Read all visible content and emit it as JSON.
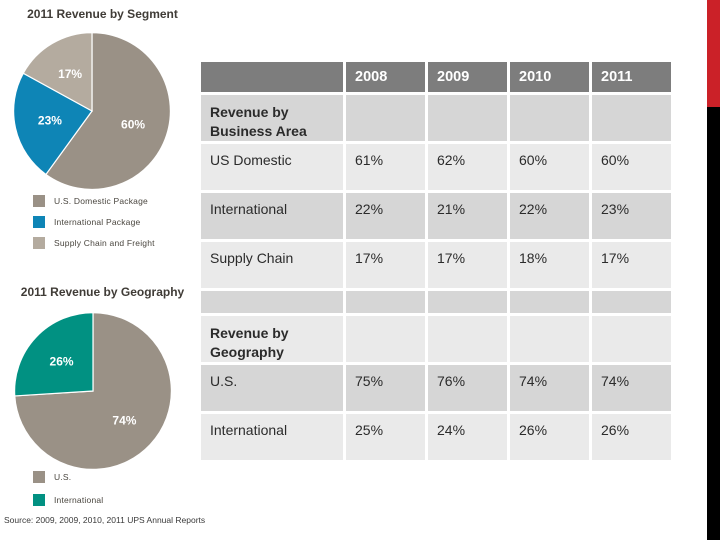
{
  "accent": {
    "red": "#cb2128",
    "black": "#000000"
  },
  "chart_data": [
    {
      "type": "pie",
      "title": "2011 Revenue by Segment",
      "labels": [
        "U.S. Domestic Package",
        "International Package",
        "Supply Chain and Freight"
      ],
      "values": [
        60,
        23,
        17
      ],
      "slice_labels": [
        "60%",
        "23%",
        "17%"
      ],
      "colors": [
        "#9a9186",
        "#0e85b6",
        "#b4ab9f"
      ],
      "start_angle_deg": 0,
      "direction": "clockwise",
      "legend_position": "below",
      "legend": [
        {
          "label": "U.S. Domestic Package",
          "color": "#9a9186"
        },
        {
          "label": "International Package",
          "color": "#0e85b6"
        },
        {
          "label": "Supply Chain and Freight",
          "color": "#b4ab9f"
        }
      ]
    },
    {
      "type": "pie",
      "title": "2011 Revenue by Geography",
      "labels": [
        "U.S.",
        "International"
      ],
      "values": [
        74,
        26
      ],
      "slice_labels": [
        "74%",
        "26%"
      ],
      "colors": [
        "#9a9186",
        "#019182"
      ],
      "start_angle_deg": 0,
      "direction": "clockwise",
      "legend_position": "below",
      "legend": [
        {
          "label": "U.S.",
          "color": "#9a9186"
        },
        {
          "label": "International",
          "color": "#019182"
        }
      ]
    }
  ],
  "table": {
    "header": [
      "",
      "2008",
      "2009",
      "2010",
      "2011"
    ],
    "rows": [
      {
        "type": "group",
        "label": "Revenue by Business Area",
        "values": [
          "",
          "",
          "",
          ""
        ]
      },
      {
        "type": "data",
        "label": "US Domestic",
        "values": [
          "61%",
          "62%",
          "60%",
          "60%"
        ]
      },
      {
        "type": "data",
        "label": "International",
        "values": [
          "22%",
          "21%",
          "22%",
          "23%"
        ]
      },
      {
        "type": "data",
        "label": "Supply Chain",
        "values": [
          "17%",
          "17%",
          "18%",
          "17%"
        ]
      },
      {
        "type": "spacer",
        "label": "",
        "values": [
          "",
          "",
          "",
          ""
        ]
      },
      {
        "type": "group",
        "label": "Revenue by Geography",
        "values": [
          "",
          "",
          "",
          ""
        ]
      },
      {
        "type": "data",
        "label": "U.S.",
        "values": [
          "75%",
          "76%",
          "74%",
          "74%"
        ]
      },
      {
        "type": "data",
        "label": "International",
        "values": [
          "25%",
          "24%",
          "26%",
          "26%"
        ]
      }
    ]
  },
  "source": "Source: 2009, 2009, 2010, 2011 UPS Annual Reports"
}
